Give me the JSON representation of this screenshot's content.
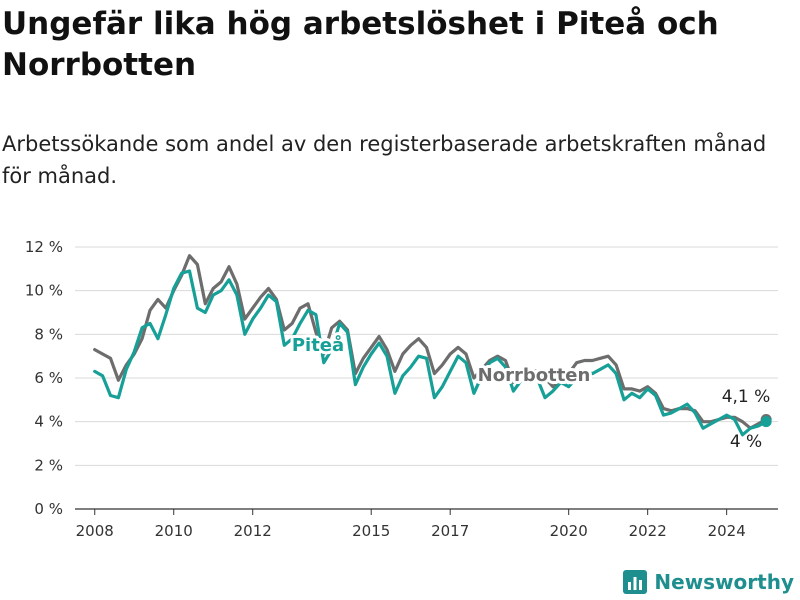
{
  "title": "Ungefär lika hög arbetslöshet i Piteå och Norrbotten",
  "subtitle": "Arbetssökande som andel av den registerbaserade arbetskraften månad för månad.",
  "brand": {
    "name": "Newsworthy",
    "icon": "bar-chart-logo-icon",
    "color": "#1f8e8e"
  },
  "colors": {
    "grid": "#d9d9d9",
    "axis": "#333333"
  },
  "chart_data": {
    "type": "line",
    "xlabel": "",
    "ylabel": "",
    "ylim": [
      0,
      12
    ],
    "xlim": [
      2007.5,
      2025.3
    ],
    "y_ticks": [
      0,
      2,
      4,
      6,
      8,
      10,
      12
    ],
    "y_tick_labels": [
      "0 %",
      "2 %",
      "4 %",
      "6 %",
      "8 %",
      "10 %",
      "12 %"
    ],
    "x_ticks": [
      2008,
      2010,
      2012,
      2015,
      2017,
      2020,
      2022,
      2024
    ],
    "x_tick_labels": [
      "2008",
      "2010",
      "2012",
      "2015",
      "2017",
      "2020",
      "2022",
      "2024"
    ],
    "grid": "horizontal",
    "legend": "inline labels",
    "series": [
      {
        "name": "Norrbotten",
        "color": "#6d6d6d",
        "end_label": "4,1 %",
        "points": [
          [
            2008.0,
            7.3
          ],
          [
            2008.2,
            7.1
          ],
          [
            2008.4,
            6.9
          ],
          [
            2008.6,
            5.9
          ],
          [
            2008.8,
            6.6
          ],
          [
            2009.0,
            7.1
          ],
          [
            2009.2,
            7.8
          ],
          [
            2009.4,
            9.1
          ],
          [
            2009.6,
            9.6
          ],
          [
            2009.8,
            9.2
          ],
          [
            2010.0,
            10.0
          ],
          [
            2010.2,
            10.7
          ],
          [
            2010.4,
            11.6
          ],
          [
            2010.6,
            11.2
          ],
          [
            2010.8,
            9.4
          ],
          [
            2011.0,
            10.1
          ],
          [
            2011.2,
            10.4
          ],
          [
            2011.4,
            11.1
          ],
          [
            2011.6,
            10.3
          ],
          [
            2011.8,
            8.7
          ],
          [
            2012.0,
            9.2
          ],
          [
            2012.2,
            9.7
          ],
          [
            2012.4,
            10.1
          ],
          [
            2012.6,
            9.6
          ],
          [
            2012.8,
            8.2
          ],
          [
            2013.0,
            8.5
          ],
          [
            2013.2,
            9.2
          ],
          [
            2013.4,
            9.4
          ],
          [
            2013.6,
            8.1
          ],
          [
            2013.8,
            7.1
          ],
          [
            2014.0,
            8.3
          ],
          [
            2014.2,
            8.6
          ],
          [
            2014.4,
            8.2
          ],
          [
            2014.6,
            6.2
          ],
          [
            2014.8,
            6.9
          ],
          [
            2015.0,
            7.4
          ],
          [
            2015.2,
            7.9
          ],
          [
            2015.4,
            7.3
          ],
          [
            2015.6,
            6.3
          ],
          [
            2015.8,
            7.1
          ],
          [
            2016.0,
            7.5
          ],
          [
            2016.2,
            7.8
          ],
          [
            2016.4,
            7.4
          ],
          [
            2016.6,
            6.2
          ],
          [
            2016.8,
            6.6
          ],
          [
            2017.0,
            7.1
          ],
          [
            2017.2,
            7.4
          ],
          [
            2017.4,
            7.1
          ],
          [
            2017.6,
            6.0
          ],
          [
            2017.8,
            6.4
          ],
          [
            2018.0,
            6.8
          ],
          [
            2018.2,
            7.0
          ],
          [
            2018.4,
            6.8
          ],
          [
            2018.6,
            5.8
          ],
          [
            2018.8,
            6.1
          ],
          [
            2019.0,
            6.4
          ],
          [
            2019.2,
            6.3
          ],
          [
            2019.4,
            6.0
          ],
          [
            2019.6,
            5.6
          ],
          [
            2019.8,
            5.9
          ],
          [
            2020.0,
            6.2
          ],
          [
            2020.2,
            6.7
          ],
          [
            2020.4,
            6.8
          ],
          [
            2020.6,
            6.8
          ],
          [
            2020.8,
            6.9
          ],
          [
            2021.0,
            7.0
          ],
          [
            2021.2,
            6.6
          ],
          [
            2021.4,
            5.5
          ],
          [
            2021.6,
            5.5
          ],
          [
            2021.8,
            5.4
          ],
          [
            2022.0,
            5.6
          ],
          [
            2022.2,
            5.3
          ],
          [
            2022.4,
            4.6
          ],
          [
            2022.6,
            4.5
          ],
          [
            2022.8,
            4.6
          ],
          [
            2023.0,
            4.6
          ],
          [
            2023.2,
            4.5
          ],
          [
            2023.4,
            4.0
          ],
          [
            2023.6,
            4.0
          ],
          [
            2023.8,
            4.1
          ],
          [
            2024.0,
            4.2
          ],
          [
            2024.2,
            4.2
          ],
          [
            2024.4,
            4.0
          ],
          [
            2024.6,
            3.7
          ],
          [
            2024.8,
            3.9
          ],
          [
            2025.0,
            4.1
          ]
        ]
      },
      {
        "name": "Piteå",
        "color": "#17a097",
        "end_label": "4 %",
        "points": [
          [
            2008.0,
            6.3
          ],
          [
            2008.2,
            6.1
          ],
          [
            2008.4,
            5.2
          ],
          [
            2008.6,
            5.1
          ],
          [
            2008.8,
            6.4
          ],
          [
            2009.0,
            7.2
          ],
          [
            2009.2,
            8.3
          ],
          [
            2009.4,
            8.5
          ],
          [
            2009.6,
            7.8
          ],
          [
            2009.8,
            8.9
          ],
          [
            2010.0,
            10.1
          ],
          [
            2010.2,
            10.8
          ],
          [
            2010.4,
            10.9
          ],
          [
            2010.6,
            9.2
          ],
          [
            2010.8,
            9.0
          ],
          [
            2011.0,
            9.8
          ],
          [
            2011.2,
            10.0
          ],
          [
            2011.4,
            10.5
          ],
          [
            2011.6,
            9.8
          ],
          [
            2011.8,
            8.0
          ],
          [
            2012.0,
            8.7
          ],
          [
            2012.2,
            9.2
          ],
          [
            2012.4,
            9.8
          ],
          [
            2012.6,
            9.5
          ],
          [
            2012.8,
            7.5
          ],
          [
            2013.0,
            7.8
          ],
          [
            2013.2,
            8.5
          ],
          [
            2013.4,
            9.1
          ],
          [
            2013.6,
            8.9
          ],
          [
            2013.8,
            6.7
          ],
          [
            2014.0,
            7.3
          ],
          [
            2014.2,
            8.5
          ],
          [
            2014.4,
            8.1
          ],
          [
            2014.6,
            5.7
          ],
          [
            2014.8,
            6.5
          ],
          [
            2015.0,
            7.1
          ],
          [
            2015.2,
            7.6
          ],
          [
            2015.4,
            7.0
          ],
          [
            2015.6,
            5.3
          ],
          [
            2015.8,
            6.1
          ],
          [
            2016.0,
            6.5
          ],
          [
            2016.2,
            7.0
          ],
          [
            2016.4,
            6.9
          ],
          [
            2016.6,
            5.1
          ],
          [
            2016.8,
            5.6
          ],
          [
            2017.0,
            6.3
          ],
          [
            2017.2,
            7.0
          ],
          [
            2017.4,
            6.7
          ],
          [
            2017.6,
            5.3
          ],
          [
            2017.8,
            6.1
          ],
          [
            2018.0,
            6.7
          ],
          [
            2018.2,
            6.9
          ],
          [
            2018.4,
            6.5
          ],
          [
            2018.6,
            5.4
          ],
          [
            2018.8,
            5.9
          ],
          [
            2019.0,
            6.2
          ],
          [
            2019.2,
            6.0
          ],
          [
            2019.4,
            5.1
          ],
          [
            2019.6,
            5.4
          ],
          [
            2019.8,
            5.8
          ],
          [
            2020.0,
            5.6
          ],
          [
            2020.2,
            6.0
          ],
          [
            2020.4,
            6.3
          ],
          [
            2020.6,
            6.2
          ],
          [
            2020.8,
            6.4
          ],
          [
            2021.0,
            6.6
          ],
          [
            2021.2,
            6.2
          ],
          [
            2021.4,
            5.0
          ],
          [
            2021.6,
            5.3
          ],
          [
            2021.8,
            5.1
          ],
          [
            2022.0,
            5.5
          ],
          [
            2022.2,
            5.2
          ],
          [
            2022.4,
            4.3
          ],
          [
            2022.6,
            4.4
          ],
          [
            2022.8,
            4.6
          ],
          [
            2023.0,
            4.8
          ],
          [
            2023.2,
            4.4
          ],
          [
            2023.4,
            3.7
          ],
          [
            2023.6,
            3.9
          ],
          [
            2023.8,
            4.1
          ],
          [
            2024.0,
            4.3
          ],
          [
            2024.2,
            4.1
          ],
          [
            2024.4,
            3.4
          ],
          [
            2024.6,
            3.7
          ],
          [
            2024.8,
            3.8
          ],
          [
            2025.0,
            4.0
          ]
        ]
      }
    ]
  }
}
